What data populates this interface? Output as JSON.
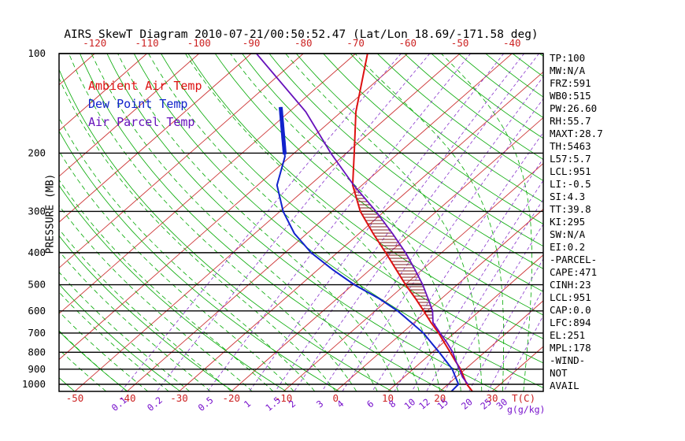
{
  "title": "AIRS SkewT Diagram 2010-07-21/00:50:52.47 (Lat/Lon 18.69/-171.58 deg)",
  "colors": {
    "temp": "#dd1111",
    "dewpoint": "#1122cc",
    "parcel": "#6611bb",
    "isotherm": "#cc3333",
    "adiabat": "#00a800",
    "mixing": "#8833cc",
    "pressure_line": "#000000",
    "frame": "#000000",
    "hatch": "#802020",
    "axis_text_red": "#cc2222",
    "axis_text_purple": "#7711cc",
    "axis_text_black": "#000000"
  },
  "legend": {
    "items": [
      {
        "label": "Ambient Air Temp",
        "color": "#dd1111"
      },
      {
        "label": "Dew Point Temp",
        "color": "#1122cc"
      },
      {
        "label": "Air Parcel Temp",
        "color": "#6611bb"
      }
    ]
  },
  "stats_panel": {
    "lines": [
      "TP:100",
      "MW:N/A",
      "FRZ:591",
      "WB0:515",
      "PW:26.60",
      "RH:55.7",
      "MAXT:28.7",
      "TH:5463",
      "L57:5.7",
      "LCL:951",
      "LI:-0.5",
      "SI:4.3",
      "TT:39.8",
      "KI:295",
      "SW:N/A",
      "EI:0.2",
      "-PARCEL-",
      "CAPE:471",
      "CINH:23",
      "LCL:951",
      "CAP:0.0",
      "LFC:894",
      "EL:251",
      "MPL:178",
      "-WIND-",
      "NOT",
      "AVAIL"
    ]
  },
  "chart_data": {
    "type": "skewt",
    "title": "AIRS SkewT Diagram 2010-07-21/00:50:52.47 (Lat/Lon 18.69/-171.58 deg)",
    "ylabel": "PRESSURE (MB)",
    "xlabel": "T(C)",
    "pressure_log_scale": true,
    "pressure_range_mb": [
      100,
      1050
    ],
    "pressure_ticks_mb": [
      100,
      200,
      300,
      400,
      500,
      600,
      700,
      800,
      900,
      1000
    ],
    "top_temp_ticks_c": [
      -120,
      -110,
      -100,
      -90,
      -80,
      -70,
      -60,
      -50,
      -40
    ],
    "bottom_temp_ticks_c": [
      -50,
      -40,
      -30,
      -20,
      -10,
      0,
      10,
      20,
      30
    ],
    "temp_unit_label": "T(C)",
    "mixing_unit_label": "g(g/kg)",
    "isotherm_step_c": 10,
    "dry_adiabats_theta_k": {
      "min": 220,
      "max": 460,
      "step": 10
    },
    "moist_adiabats_start_c": {
      "min": -44,
      "max": 36,
      "step": 4
    },
    "mixing_ratio_lines_gkg": [
      0.1,
      0.2,
      0.5,
      1,
      1.5,
      2,
      3,
      4,
      6,
      8,
      10,
      12,
      15,
      20,
      25,
      30
    ],
    "series": [
      {
        "name": "Ambient Air Temp",
        "color": "#dd1111",
        "points_p_t": [
          [
            1050,
            26.2
          ],
          [
            1000,
            23.6
          ],
          [
            950,
            21.4
          ],
          [
            900,
            19.1
          ],
          [
            850,
            16.3
          ],
          [
            800,
            13.4
          ],
          [
            750,
            10.3
          ],
          [
            700,
            7.0
          ],
          [
            650,
            3.2
          ],
          [
            600,
            -0.7
          ],
          [
            550,
            -5.0
          ],
          [
            500,
            -9.9
          ],
          [
            450,
            -15.0
          ],
          [
            400,
            -20.7
          ],
          [
            350,
            -27.3
          ],
          [
            300,
            -34.6
          ],
          [
            250,
            -41.8
          ],
          [
            200,
            -48.5
          ],
          [
            150,
            -57.2
          ],
          [
            100,
            -67.7
          ]
        ]
      },
      {
        "name": "Dew Point Temp",
        "color": "#1122cc",
        "points_p_t": [
          [
            1050,
            22.2
          ],
          [
            1000,
            22.0
          ],
          [
            950,
            19.8
          ],
          [
            900,
            17.5
          ],
          [
            850,
            14.5
          ],
          [
            800,
            11.3
          ],
          [
            750,
            7.8
          ],
          [
            700,
            4.1
          ],
          [
            650,
            -0.6
          ],
          [
            600,
            -5.7
          ],
          [
            550,
            -12.0
          ],
          [
            500,
            -19.7
          ],
          [
            450,
            -27.2
          ],
          [
            400,
            -35.0
          ],
          [
            350,
            -42.4
          ],
          [
            300,
            -49.4
          ],
          [
            250,
            -56.3
          ],
          [
            205,
            -61.0
          ],
          [
            145,
            -72.7
          ]
        ]
      },
      {
        "name": "Air Parcel Temp",
        "color": "#6611bb",
        "points_p_t": [
          [
            1000,
            23.8
          ],
          [
            951,
            21.2
          ],
          [
            900,
            18.9
          ],
          [
            850,
            16.4
          ],
          [
            800,
            13.9
          ],
          [
            750,
            10.8
          ],
          [
            700,
            7.3
          ],
          [
            650,
            3.6
          ],
          [
            600,
            1.0
          ],
          [
            550,
            -2.6
          ],
          [
            500,
            -6.6
          ],
          [
            450,
            -11.4
          ],
          [
            400,
            -16.9
          ],
          [
            350,
            -23.6
          ],
          [
            300,
            -31.6
          ],
          [
            250,
            -41.6
          ],
          [
            200,
            -53.0
          ],
          [
            150,
            -66.8
          ],
          [
            100,
            -89.0
          ]
        ]
      }
    ],
    "dewpoint_thick_segment_mb": [
      205,
      145
    ],
    "cape_hatch_mb": [
      890,
      250
    ],
    "stats": [
      "TP:100",
      "MW:N/A",
      "FRZ:591",
      "WB0:515",
      "PW:26.60",
      "RH:55.7",
      "MAXT:28.7",
      "TH:5463",
      "L57:5.7",
      "LCL:951",
      "LI:-0.5",
      "SI:4.3",
      "TT:39.8",
      "KI:295",
      "SW:N/A",
      "EI:0.2",
      "-PARCEL-",
      "CAPE:471",
      "CINH:23",
      "LCL:951",
      "CAP:0.0",
      "LFC:894",
      "EL:251",
      "MPL:178",
      "-WIND-",
      "NOT",
      "AVAIL"
    ]
  }
}
